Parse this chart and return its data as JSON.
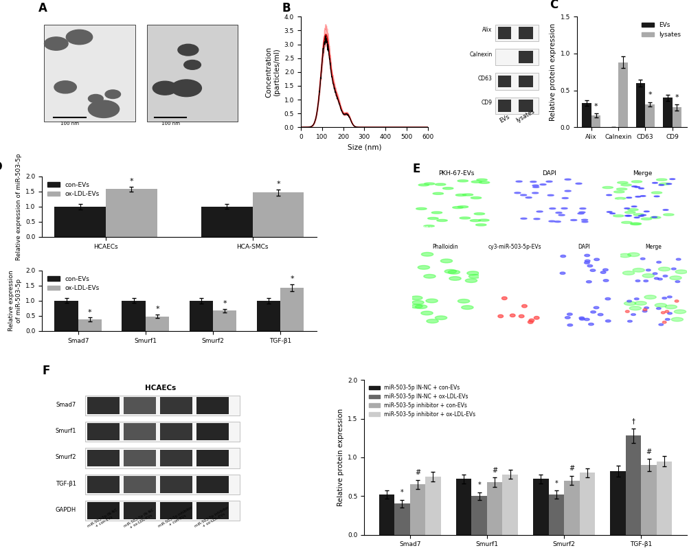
{
  "panel_B": {
    "xlabel": "Size (nm)",
    "ylabel": "Concentration\n(particles/ml)",
    "xlim": [
      0,
      600
    ],
    "ylim": [
      0,
      4.0
    ],
    "yticks": [
      0,
      0.5,
      1.0,
      1.5,
      2.0,
      2.5,
      3.0,
      3.5,
      4.0
    ],
    "xticks": [
      0,
      100,
      200,
      300,
      400,
      500,
      600
    ],
    "line_color": "#cc0000",
    "fill_color": "#ff9999"
  },
  "panel_C_bar": {
    "categories": [
      "Alix",
      "Calnexin",
      "CD63",
      "CD9"
    ],
    "EVs_values": [
      0.33,
      0.0,
      0.6,
      0.4
    ],
    "lysates_values": [
      0.16,
      0.88,
      0.31,
      0.27
    ],
    "EVs_errors": [
      0.04,
      0.0,
      0.05,
      0.04
    ],
    "lysates_errors": [
      0.03,
      0.08,
      0.03,
      0.04
    ],
    "EVs_color": "#1a1a1a",
    "lysates_color": "#aaaaaa",
    "ylabel": "Relative protein expression",
    "ylim": [
      0,
      1.5
    ],
    "yticks": [
      0.0,
      0.5,
      1.0,
      1.5
    ]
  },
  "panel_D_left": {
    "categories": [
      "HCAECs",
      "HCA-SMCs"
    ],
    "con_EVs_values": [
      1.0,
      1.0
    ],
    "ox_LDL_EVs_values": [
      1.58,
      1.46
    ],
    "con_EVs_errors": [
      0.09,
      0.08
    ],
    "ox_LDL_EVs_errors": [
      0.08,
      0.1
    ],
    "con_EVs_color": "#1a1a1a",
    "ox_LDL_EVs_color": "#aaaaaa",
    "ylabel": "Relative expression of miR-503-5p",
    "ylim": [
      0,
      2.0
    ],
    "yticks": [
      0,
      0.5,
      1.0,
      1.5,
      2.0
    ]
  },
  "panel_D_right": {
    "categories": [
      "Smad7",
      "Smurf1",
      "Smurf2",
      "TGF-β1"
    ],
    "con_EVs_values": [
      1.0,
      1.0,
      1.0,
      1.0
    ],
    "ox_LDL_EVs_values": [
      0.38,
      0.48,
      0.67,
      1.42
    ],
    "con_EVs_errors": [
      0.08,
      0.08,
      0.09,
      0.09
    ],
    "ox_LDL_EVs_errors": [
      0.06,
      0.06,
      0.06,
      0.12
    ],
    "con_EVs_color": "#1a1a1a",
    "ox_LDL_EVs_color": "#aaaaaa",
    "ylabel": "Relative expression\nof miR-503-5p",
    "ylim": [
      0,
      2.0
    ],
    "yticks": [
      0,
      0.5,
      1.0,
      1.5,
      2.0
    ]
  },
  "panel_F_bar": {
    "categories": [
      "Smad7",
      "Smurf1",
      "Smurf2",
      "TGF-β1"
    ],
    "group1_values": [
      0.52,
      0.72,
      0.72,
      0.82
    ],
    "group2_values": [
      0.4,
      0.5,
      0.52,
      1.28
    ],
    "group3_values": [
      0.65,
      0.68,
      0.7,
      0.9
    ],
    "group4_values": [
      0.75,
      0.78,
      0.8,
      0.95
    ],
    "group1_errors": [
      0.05,
      0.06,
      0.06,
      0.07
    ],
    "group2_errors": [
      0.05,
      0.05,
      0.05,
      0.09
    ],
    "group3_errors": [
      0.06,
      0.06,
      0.06,
      0.08
    ],
    "group4_errors": [
      0.06,
      0.06,
      0.06,
      0.07
    ],
    "group1_color": "#1a1a1a",
    "group2_color": "#666666",
    "group3_color": "#aaaaaa",
    "group4_color": "#cccccc",
    "ylabel": "Relative protein expression",
    "ylim": [
      0,
      2.0
    ],
    "yticks": [
      0.0,
      0.5,
      1.0,
      1.5,
      2.0
    ],
    "legend_labels": [
      "miR-503-5p IN-NC + con-EVs",
      "miR-503-5p IN-NC + ox-LDL-EVs",
      "miR-503-5p inhibitor + con-EVs",
      "miR-503-5p inhibitor + ox-LDL-EVs"
    ]
  },
  "colors": {
    "background": "#ffffff"
  }
}
